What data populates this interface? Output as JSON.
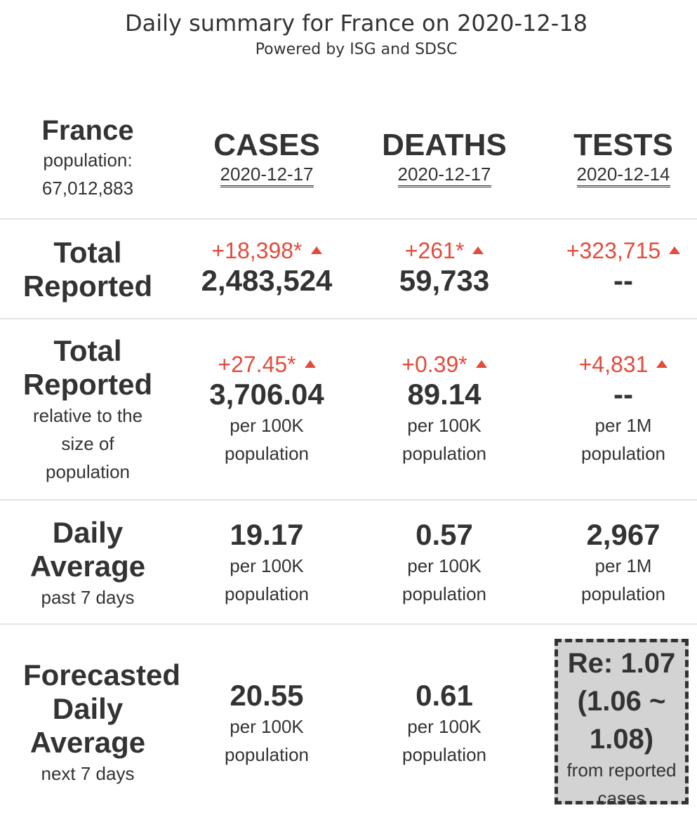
{
  "header": {
    "title": "Daily summary for France on 2020-12-18",
    "subtitle": "Powered by ISG and SDSC"
  },
  "country": {
    "name": "France",
    "population_label": "population:",
    "population": "67,012,883"
  },
  "columns": [
    {
      "label": "CASES",
      "date": "2020-12-17"
    },
    {
      "label": "DEATHS",
      "date": "2020-12-17"
    },
    {
      "label": "TESTS",
      "date": "2020-12-14"
    }
  ],
  "rows": {
    "total_reported": {
      "label_line1": "Total",
      "label_line2": "Reported",
      "cases": {
        "change": "+18,398*",
        "value": "2,483,524"
      },
      "deaths": {
        "change": "+261*",
        "value": "59,733"
      },
      "tests": {
        "change": "+323,715",
        "value": "--"
      }
    },
    "relative": {
      "label_line1": "Total",
      "label_line2": "Reported",
      "sub1": "relative to the",
      "sub2": "size of",
      "sub3": "population",
      "cases": {
        "change": "+27.45*",
        "value": "3,706.04",
        "unit1": "per 100K",
        "unit2": "population"
      },
      "deaths": {
        "change": "+0.39*",
        "value": "89.14",
        "unit1": "per 100K",
        "unit2": "population"
      },
      "tests": {
        "change": "+4,831",
        "value": "--",
        "unit1": "per 1M",
        "unit2": "population"
      }
    },
    "daily_average": {
      "label_line1": "Daily",
      "label_line2": "Average",
      "sub1": "past 7 days",
      "cases": {
        "value": "19.17",
        "unit1": "per 100K",
        "unit2": "population"
      },
      "deaths": {
        "value": "0.57",
        "unit1": "per 100K",
        "unit2": "population"
      },
      "tests": {
        "value": "2,967",
        "unit1": "per 1M",
        "unit2": "population"
      }
    },
    "forecast": {
      "label_line1": "Forecasted",
      "label_line2": "Daily",
      "label_line3": "Average",
      "sub1": "next 7 days",
      "cases": {
        "value": "20.55",
        "unit1": "per 100K",
        "unit2": "population"
      },
      "deaths": {
        "value": "0.61",
        "unit1": "per 100K",
        "unit2": "population"
      },
      "re": {
        "line1": "Re: 1.07",
        "line2": "(1.06 ~",
        "line3": "1.08)",
        "sub1": "from reported",
        "sub2": "cases"
      }
    }
  },
  "colors": {
    "text": "#333333",
    "increase": "#e34b3c",
    "re_box_bg": "#d3d3d3",
    "divider": "#e4e4e4"
  },
  "icons": {
    "increase": "triangle-up-icon"
  }
}
